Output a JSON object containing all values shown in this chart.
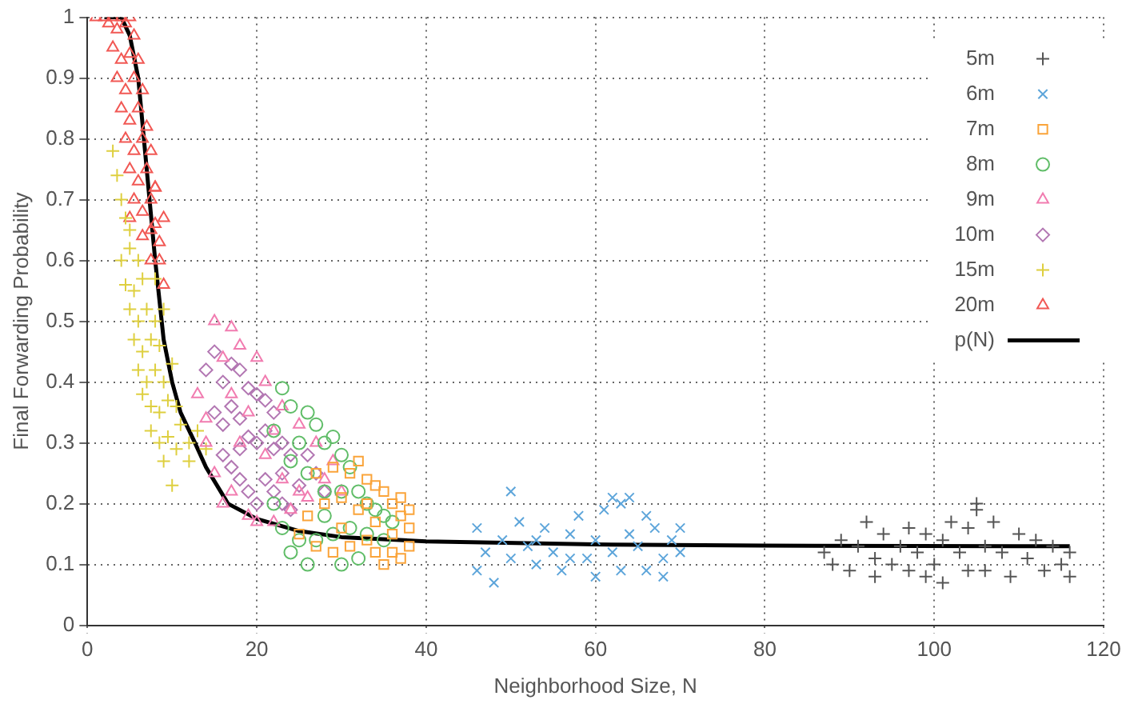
{
  "chart_data": {
    "type": "scatter",
    "xlabel": "Neighborhood Size, N",
    "ylabel": "Final Forwarding Probability",
    "xlim": [
      0,
      120
    ],
    "xticks": [
      0,
      20,
      40,
      60,
      80,
      100,
      120
    ],
    "ylim": [
      0,
      1
    ],
    "yticks": [
      0,
      0.1,
      0.2,
      0.3,
      0.4,
      0.5,
      0.6,
      0.7,
      0.8,
      0.9,
      1
    ],
    "grid": true,
    "legend": "top right",
    "series": [
      {
        "name": "5m",
        "color": "#555555",
        "marker": "cross",
        "x": [
          87,
          88,
          89,
          90,
          91,
          92,
          93,
          93,
          94,
          95,
          96,
          97,
          97,
          98,
          99,
          100,
          101,
          101,
          102,
          103,
          104,
          104,
          105,
          105,
          106,
          106,
          107,
          108,
          109,
          110,
          111,
          112,
          113,
          114,
          115,
          116,
          116,
          99
        ],
        "values": [
          0.12,
          0.1,
          0.14,
          0.09,
          0.13,
          0.17,
          0.11,
          0.08,
          0.15,
          0.1,
          0.13,
          0.16,
          0.09,
          0.12,
          0.15,
          0.1,
          0.07,
          0.14,
          0.17,
          0.12,
          0.09,
          0.16,
          0.19,
          0.2,
          0.13,
          0.09,
          0.17,
          0.12,
          0.08,
          0.15,
          0.11,
          0.14,
          0.09,
          0.13,
          0.1,
          0.12,
          0.08,
          0.08
        ]
      },
      {
        "name": "6m",
        "color": "#5da5da",
        "marker": "x",
        "x": [
          46,
          47,
          46,
          48,
          50,
          49,
          50,
          51,
          52,
          53,
          54,
          55,
          56,
          57,
          58,
          59,
          60,
          60,
          61,
          62,
          62,
          63,
          63,
          64,
          64,
          65,
          66,
          66,
          67,
          68,
          68,
          69,
          70,
          70,
          53,
          57
        ],
        "values": [
          0.16,
          0.12,
          0.09,
          0.07,
          0.22,
          0.14,
          0.11,
          0.17,
          0.13,
          0.1,
          0.16,
          0.12,
          0.09,
          0.15,
          0.18,
          0.11,
          0.14,
          0.08,
          0.19,
          0.21,
          0.12,
          0.2,
          0.09,
          0.21,
          0.15,
          0.13,
          0.18,
          0.09,
          0.16,
          0.11,
          0.08,
          0.14,
          0.12,
          0.16,
          0.14,
          0.11
        ]
      },
      {
        "name": "7m",
        "color": "#faa43a",
        "marker": "square",
        "x": [
          27,
          29,
          31,
          32,
          33,
          34,
          35,
          36,
          37,
          38,
          38,
          38,
          37,
          36,
          35,
          34,
          33,
          31,
          29,
          27,
          25,
          26,
          28,
          30,
          32,
          34,
          36,
          37,
          30,
          33
        ],
        "values": [
          0.25,
          0.26,
          0.25,
          0.27,
          0.24,
          0.23,
          0.22,
          0.2,
          0.21,
          0.19,
          0.16,
          0.13,
          0.11,
          0.12,
          0.1,
          0.12,
          0.14,
          0.13,
          0.12,
          0.13,
          0.15,
          0.18,
          0.2,
          0.21,
          0.19,
          0.17,
          0.15,
          0.18,
          0.16,
          0.2
        ]
      },
      {
        "name": "8m",
        "color": "#60bd68",
        "marker": "circle",
        "x": [
          23,
          24,
          26,
          27,
          22,
          25,
          28,
          29,
          30,
          31,
          24,
          26,
          28,
          30,
          32,
          33,
          34,
          35,
          36,
          23,
          25,
          27,
          29,
          31,
          33,
          35,
          24,
          26,
          30,
          32,
          28,
          22
        ],
        "values": [
          0.39,
          0.36,
          0.35,
          0.33,
          0.32,
          0.3,
          0.3,
          0.31,
          0.28,
          0.26,
          0.27,
          0.25,
          0.22,
          0.22,
          0.22,
          0.2,
          0.19,
          0.18,
          0.17,
          0.16,
          0.14,
          0.14,
          0.15,
          0.16,
          0.15,
          0.14,
          0.12,
          0.1,
          0.1,
          0.11,
          0.18,
          0.2
        ]
      },
      {
        "name": "9m",
        "color": "#f17cb0",
        "marker": "triangle",
        "x": [
          15,
          17,
          18,
          20,
          16,
          14,
          15,
          16,
          17,
          19,
          20,
          22,
          24,
          26,
          28,
          30,
          21,
          23,
          25,
          27,
          29,
          13,
          14,
          17,
          19,
          21,
          23,
          25,
          18,
          22
        ],
        "values": [
          0.5,
          0.49,
          0.46,
          0.44,
          0.44,
          0.3,
          0.25,
          0.2,
          0.22,
          0.18,
          0.17,
          0.17,
          0.19,
          0.21,
          0.24,
          0.22,
          0.4,
          0.36,
          0.33,
          0.3,
          0.27,
          0.38,
          0.34,
          0.38,
          0.35,
          0.28,
          0.24,
          0.22,
          0.3,
          0.32
        ]
      },
      {
        "name": "10m",
        "color": "#b276b2",
        "marker": "diamond",
        "x": [
          14,
          15,
          16,
          17,
          18,
          19,
          20,
          21,
          22,
          15,
          16,
          17,
          18,
          19,
          20,
          21,
          22,
          23,
          24,
          16,
          17,
          18,
          19,
          20,
          21,
          22,
          23,
          24,
          25,
          26,
          27,
          28,
          18,
          23
        ],
        "values": [
          0.42,
          0.45,
          0.4,
          0.43,
          0.42,
          0.39,
          0.38,
          0.37,
          0.35,
          0.35,
          0.33,
          0.36,
          0.34,
          0.31,
          0.3,
          0.32,
          0.29,
          0.3,
          0.28,
          0.28,
          0.26,
          0.24,
          0.22,
          0.2,
          0.24,
          0.22,
          0.2,
          0.19,
          0.23,
          0.28,
          0.25,
          0.22,
          0.29,
          0.25
        ]
      },
      {
        "name": "15m",
        "color": "#decf3f",
        "marker": "cross",
        "x": [
          3,
          3.5,
          4,
          4.5,
          5,
          4,
          5,
          6,
          4.5,
          5.5,
          6.5,
          5,
          6,
          7,
          8,
          5.5,
          6.5,
          7.5,
          8.5,
          6,
          7,
          8,
          9,
          10,
          6.5,
          7.5,
          8.5,
          9.5,
          10.5,
          11,
          7.5,
          8.5,
          9.5,
          10.5,
          12,
          13,
          9,
          10,
          12,
          14,
          8,
          9
        ],
        "values": [
          0.78,
          0.74,
          0.7,
          0.67,
          0.65,
          0.6,
          0.62,
          0.6,
          0.56,
          0.55,
          0.57,
          0.52,
          0.5,
          0.52,
          0.5,
          0.47,
          0.45,
          0.47,
          0.46,
          0.42,
          0.4,
          0.42,
          0.4,
          0.43,
          0.38,
          0.36,
          0.35,
          0.37,
          0.36,
          0.33,
          0.32,
          0.3,
          0.31,
          0.29,
          0.3,
          0.32,
          0.27,
          0.23,
          0.27,
          0.29,
          0.57,
          0.52
        ]
      },
      {
        "name": "20m",
        "color": "#f15854",
        "marker": "triangle",
        "x": [
          1,
          2,
          3,
          4,
          5,
          2.5,
          3.5,
          4.5,
          5.5,
          3,
          4,
          5,
          6,
          3.5,
          4.5,
          5.5,
          6.5,
          4,
          5,
          6,
          7,
          4.5,
          5.5,
          6.5,
          7.5,
          5,
          6,
          7,
          8,
          5.5,
          6.5,
          7.5,
          8,
          6.5,
          7.5,
          8.5,
          7.5,
          8.5,
          9,
          8,
          9,
          5
        ],
        "values": [
          1,
          1,
          1,
          1,
          1,
          0.99,
          0.98,
          0.99,
          0.97,
          0.95,
          0.93,
          0.94,
          0.93,
          0.9,
          0.88,
          0.9,
          0.88,
          0.85,
          0.83,
          0.85,
          0.82,
          0.8,
          0.78,
          0.8,
          0.78,
          0.75,
          0.73,
          0.75,
          0.72,
          0.7,
          0.68,
          0.7,
          0.66,
          0.64,
          0.65,
          0.63,
          0.6,
          0.6,
          0.56,
          0.72,
          0.67,
          0.67
        ]
      },
      {
        "name": "p(N)",
        "color": "#000000",
        "type": "line",
        "marker": "none",
        "x": [
          2,
          4,
          5,
          6,
          7,
          8,
          9,
          10,
          11,
          12.7,
          14,
          16.6,
          20,
          25,
          30,
          40,
          60,
          80,
          116
        ],
        "values": [
          1,
          1,
          0.97,
          0.9,
          0.75,
          0.6,
          0.47,
          0.4,
          0.35,
          0.3,
          0.26,
          0.2,
          0.175,
          0.155,
          0.145,
          0.138,
          0.133,
          0.131,
          0.13
        ]
      }
    ]
  }
}
